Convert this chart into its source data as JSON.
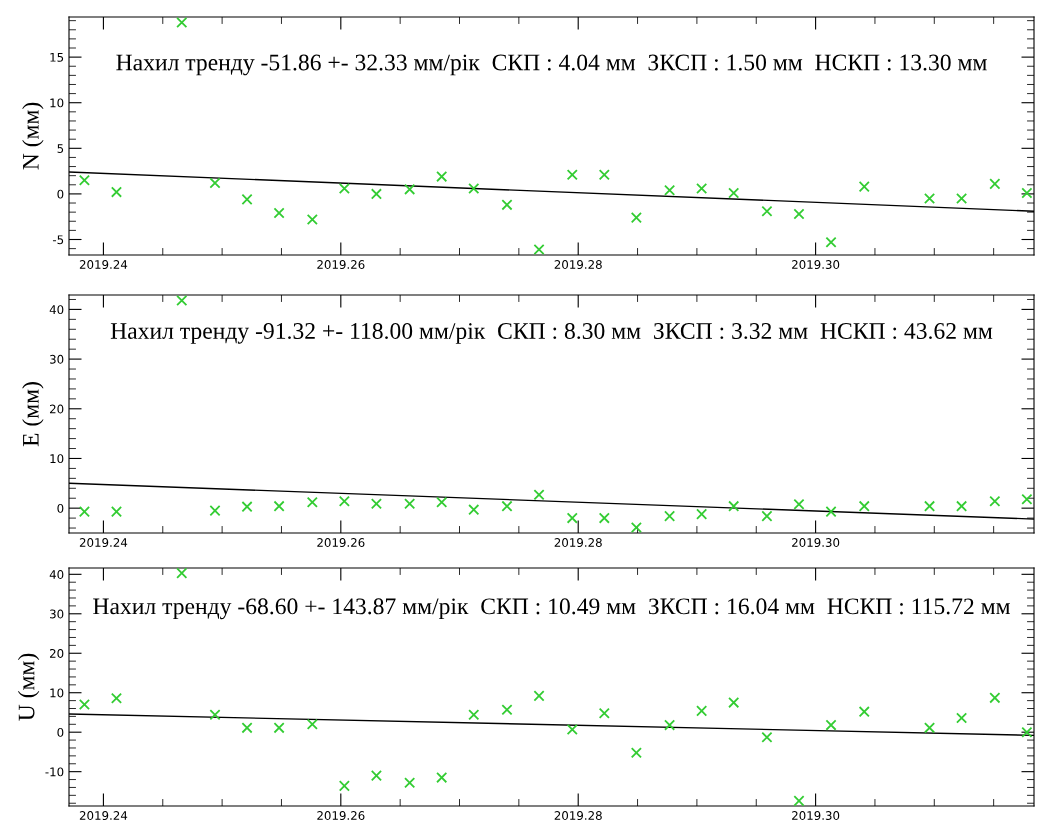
{
  "chart_data": [
    {
      "type": "scatter",
      "ylabel": "N (мм)",
      "grid": false,
      "legend": false,
      "annotations": [
        "Нахил тренду -51.86 +- 32.33 мм/рік  СКП : 4.04 мм  ЗКСП : 1.50 мм  НСКП : 13.30 мм"
      ],
      "xlim": [
        2019.2371,
        2019.3184
      ],
      "xticks": [
        {
          "value": 2019.24,
          "label": "2019.24"
        },
        {
          "value": 2019.26,
          "label": "2019.26"
        },
        {
          "value": 2019.28,
          "label": "2019.28"
        },
        {
          "value": 2019.3,
          "label": "2019.30"
        }
      ],
      "ylim": [
        -6.7,
        19.4
      ],
      "yticks": [
        -5,
        0,
        5,
        10,
        15
      ],
      "series": [
        {
          "marker": "cross",
          "color": "#33cc33",
          "x": [
            2019.2384,
            2019.2411,
            2019.2466,
            2019.2494,
            2019.2521,
            2019.2548,
            2019.2576,
            2019.2603,
            2019.263,
            2019.2658,
            2019.2685,
            2019.2712,
            2019.274,
            2019.2767,
            2019.2795,
            2019.2822,
            2019.2849,
            2019.2877,
            2019.2904,
            2019.2931,
            2019.2959,
            2019.2986,
            2019.3013,
            2019.3041,
            2019.3096,
            2019.3123,
            2019.3151,
            2019.3178
          ],
          "values": [
            1.5,
            0.2,
            18.8,
            1.2,
            -0.6,
            -2.1,
            -2.8,
            0.6,
            0.0,
            0.5,
            1.9,
            0.6,
            -1.2,
            -6.1,
            2.1,
            2.1,
            -2.6,
            0.4,
            0.6,
            0.1,
            -1.9,
            -2.2,
            -5.3,
            0.8,
            -0.5,
            -0.5,
            1.1,
            0.1
          ]
        },
        {
          "type": "line",
          "color": "#000000",
          "x": [
            2019.2371,
            2019.3184
          ],
          "values": [
            2.4,
            -1.9
          ]
        }
      ]
    },
    {
      "type": "scatter",
      "ylabel": "E (мм)",
      "grid": false,
      "legend": false,
      "annotations": [
        "Нахил тренду -91.32 +- 118.00 мм/рік  СКП : 8.30 мм  ЗКСП : 3.32 мм  НСКП : 43.62 мм"
      ],
      "xlim": [
        2019.2371,
        2019.3184
      ],
      "xticks": [
        {
          "value": 2019.24,
          "label": "2019.24"
        },
        {
          "value": 2019.26,
          "label": "2019.26"
        },
        {
          "value": 2019.28,
          "label": "2019.28"
        },
        {
          "value": 2019.3,
          "label": "2019.30"
        }
      ],
      "ylim": [
        -5.0,
        42.9
      ],
      "yticks": [
        0,
        10,
        20,
        30,
        40
      ],
      "series": [
        {
          "marker": "cross",
          "color": "#33cc33",
          "x": [
            2019.2384,
            2019.2411,
            2019.2466,
            2019.2494,
            2019.2521,
            2019.2548,
            2019.2576,
            2019.2603,
            2019.263,
            2019.2658,
            2019.2685,
            2019.2712,
            2019.274,
            2019.2767,
            2019.2795,
            2019.2822,
            2019.2849,
            2019.2877,
            2019.2904,
            2019.2931,
            2019.2959,
            2019.2986,
            2019.3013,
            2019.3041,
            2019.3096,
            2019.3123,
            2019.3151,
            2019.3178
          ],
          "values": [
            -0.7,
            -0.7,
            41.8,
            -0.5,
            0.3,
            0.4,
            1.2,
            1.4,
            0.9,
            0.9,
            1.2,
            -0.3,
            0.4,
            2.7,
            -2.0,
            -2.0,
            -3.9,
            -1.6,
            -1.2,
            0.4,
            -1.6,
            0.8,
            -0.7,
            0.4,
            0.4,
            0.4,
            1.4,
            1.8
          ]
        },
        {
          "type": "line",
          "color": "#000000",
          "x": [
            2019.2371,
            2019.3184
          ],
          "values": [
            5.0,
            -2.2
          ]
        }
      ]
    },
    {
      "type": "scatter",
      "ylabel": "U (мм)",
      "grid": false,
      "legend": false,
      "annotations": [
        "Нахил тренду -68.60 +- 143.87 мм/рік  СКП : 10.49 мм  ЗКСП : 16.04 мм  НСКП : 115.72 мм"
      ],
      "xlim": [
        2019.2371,
        2019.3184
      ],
      "xticks": [
        {
          "value": 2019.24,
          "label": "2019.24"
        },
        {
          "value": 2019.26,
          "label": "2019.26"
        },
        {
          "value": 2019.28,
          "label": "2019.28"
        },
        {
          "value": 2019.3,
          "label": "2019.30"
        }
      ],
      "ylim": [
        -18.7,
        41.6
      ],
      "yticks": [
        -10,
        0,
        10,
        20,
        30,
        40
      ],
      "series": [
        {
          "marker": "cross",
          "color": "#33cc33",
          "x": [
            2019.2384,
            2019.2411,
            2019.2466,
            2019.2494,
            2019.2521,
            2019.2548,
            2019.2576,
            2019.2603,
            2019.263,
            2019.2658,
            2019.2685,
            2019.2712,
            2019.274,
            2019.2767,
            2019.2795,
            2019.2822,
            2019.2849,
            2019.2877,
            2019.2904,
            2019.2931,
            2019.2959,
            2019.2986,
            2019.3013,
            2019.3041,
            2019.3096,
            2019.3123,
            2019.3151,
            2019.3178
          ],
          "values": [
            7.0,
            8.6,
            40.3,
            4.4,
            1.1,
            1.1,
            2.0,
            -13.6,
            -11.0,
            -12.8,
            -11.5,
            4.4,
            5.7,
            9.2,
            0.7,
            4.8,
            -5.2,
            1.8,
            5.4,
            7.5,
            -1.3,
            -17.4,
            1.8,
            5.2,
            1.1,
            3.6,
            8.7,
            0.0
          ]
        },
        {
          "type": "line",
          "color": "#000000",
          "x": [
            2019.2371,
            2019.3184
          ],
          "values": [
            4.6,
            -0.8
          ]
        }
      ]
    }
  ]
}
